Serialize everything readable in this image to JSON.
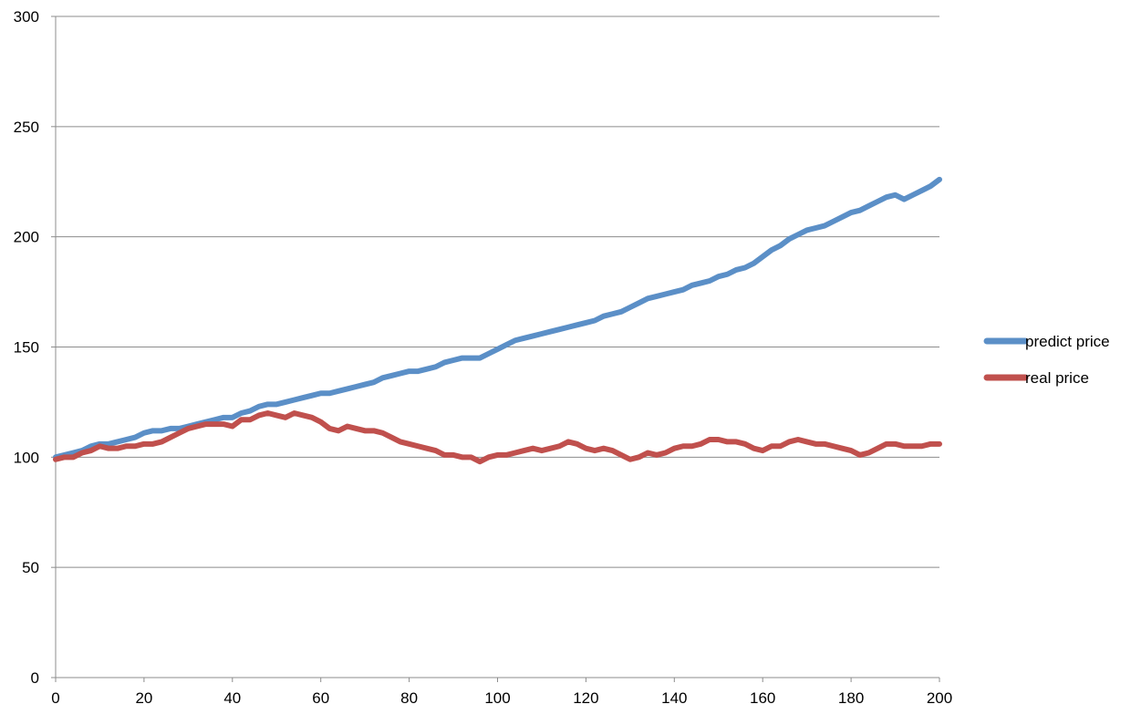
{
  "chart_data": {
    "type": "line",
    "title": "",
    "xlabel": "",
    "ylabel": "",
    "xlim": [
      0,
      200
    ],
    "ylim": [
      0,
      300
    ],
    "xticks": [
      0,
      20,
      40,
      60,
      80,
      100,
      120,
      140,
      160,
      180,
      200
    ],
    "yticks": [
      0,
      50,
      100,
      150,
      200,
      250,
      300
    ],
    "x_tick_labels": [
      "0",
      "20",
      "40",
      "60",
      "80",
      "100",
      "120",
      "140",
      "160",
      "180",
      "200"
    ],
    "y_tick_labels": [
      "0",
      "50",
      "100",
      "150",
      "200",
      "250",
      "300"
    ],
    "grid": "horizontal",
    "legend_position": "right",
    "series": [
      {
        "name": "predict price",
        "color": "#5b8fc7",
        "x": [
          0,
          2,
          4,
          6,
          8,
          10,
          12,
          14,
          16,
          18,
          20,
          22,
          24,
          26,
          28,
          30,
          32,
          34,
          36,
          38,
          40,
          42,
          44,
          46,
          48,
          50,
          52,
          54,
          56,
          58,
          60,
          62,
          64,
          66,
          68,
          70,
          72,
          74,
          76,
          78,
          80,
          82,
          84,
          86,
          88,
          90,
          92,
          94,
          96,
          98,
          100,
          102,
          104,
          106,
          108,
          110,
          112,
          114,
          116,
          118,
          120,
          122,
          124,
          126,
          128,
          130,
          132,
          134,
          136,
          138,
          140,
          142,
          144,
          146,
          148,
          150,
          152,
          154,
          156,
          158,
          160,
          162,
          164,
          166,
          168,
          170,
          172,
          174,
          176,
          178,
          180,
          182,
          184,
          186,
          188,
          190,
          192,
          194,
          196,
          198,
          200
        ],
        "values": [
          100,
          101,
          102,
          103,
          105,
          106,
          106,
          107,
          108,
          109,
          111,
          112,
          112,
          113,
          113,
          114,
          115,
          116,
          117,
          118,
          118,
          120,
          121,
          123,
          124,
          124,
          125,
          126,
          127,
          128,
          129,
          129,
          130,
          131,
          132,
          133,
          134,
          136,
          137,
          138,
          139,
          139,
          140,
          141,
          143,
          144,
          145,
          145,
          145,
          147,
          149,
          151,
          153,
          154,
          155,
          156,
          157,
          158,
          159,
          160,
          161,
          162,
          164,
          165,
          166,
          168,
          170,
          172,
          173,
          174,
          175,
          176,
          178,
          179,
          180,
          182,
          183,
          185,
          186,
          188,
          191,
          194,
          196,
          199,
          201,
          203,
          204,
          205,
          207,
          209,
          211,
          212,
          214,
          216,
          218,
          219,
          217,
          219,
          221,
          223,
          226
        ]
      },
      {
        "name": "real price",
        "color": "#c0504d",
        "x": [
          0,
          2,
          4,
          6,
          8,
          10,
          12,
          14,
          16,
          18,
          20,
          22,
          24,
          26,
          28,
          30,
          32,
          34,
          36,
          38,
          40,
          42,
          44,
          46,
          48,
          50,
          52,
          54,
          56,
          58,
          60,
          62,
          64,
          66,
          68,
          70,
          72,
          74,
          76,
          78,
          80,
          82,
          84,
          86,
          88,
          90,
          92,
          94,
          96,
          98,
          100,
          102,
          104,
          106,
          108,
          110,
          112,
          114,
          116,
          118,
          120,
          122,
          124,
          126,
          128,
          130,
          132,
          134,
          136,
          138,
          140,
          142,
          144,
          146,
          148,
          150,
          152,
          154,
          156,
          158,
          160,
          162,
          164,
          166,
          168,
          170,
          172,
          174,
          176,
          178,
          180,
          182,
          184,
          186,
          188,
          190,
          192,
          194,
          196,
          198,
          200
        ],
        "values": [
          99,
          100,
          100,
          102,
          103,
          105,
          104,
          104,
          105,
          105,
          106,
          106,
          107,
          109,
          111,
          113,
          114,
          115,
          115,
          115,
          114,
          117,
          117,
          119,
          120,
          119,
          118,
          120,
          119,
          118,
          116,
          113,
          112,
          114,
          113,
          112,
          112,
          111,
          109,
          107,
          106,
          105,
          104,
          103,
          101,
          101,
          100,
          100,
          98,
          100,
          101,
          101,
          102,
          103,
          104,
          103,
          104,
          105,
          107,
          106,
          104,
          103,
          104,
          103,
          101,
          99,
          100,
          102,
          101,
          102,
          104,
          105,
          105,
          106,
          108,
          108,
          107,
          107,
          106,
          104,
          103,
          105,
          105,
          107,
          108,
          107,
          106,
          106,
          105,
          104,
          103,
          101,
          102,
          104,
          106,
          106,
          105,
          105,
          105,
          106,
          106
        ]
      }
    ]
  }
}
